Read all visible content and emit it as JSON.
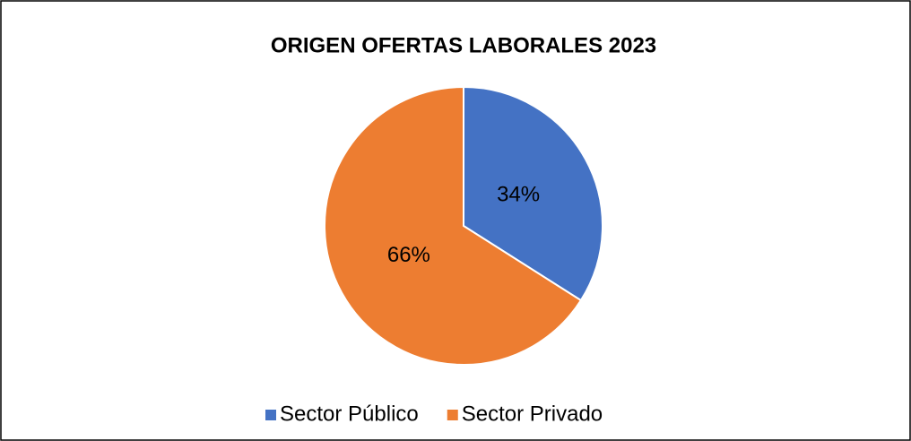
{
  "chart_data": {
    "type": "pie",
    "title": "ORIGEN OFERTAS LABORALES 2023",
    "categories": [
      "Sector Público",
      "Sector Privado"
    ],
    "values": [
      34,
      66
    ],
    "value_labels": [
      "34%",
      "66%"
    ],
    "colors": [
      "#4472c4",
      "#ed7d31"
    ],
    "legend": "bottom"
  }
}
